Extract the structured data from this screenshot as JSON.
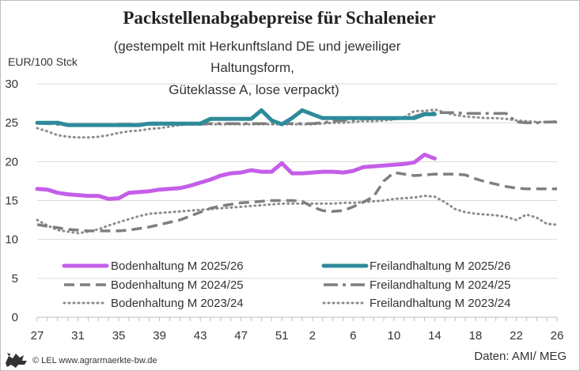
{
  "chart_data": {
    "type": "line",
    "title": "Packstellenabgabepreise für Schaleneier",
    "subtitle_lines": [
      "(gestempelt mit Herkunftsland DE und jeweiliger",
      "Haltungsform,",
      "Güteklasse A, lose verpackt)"
    ],
    "ylabel": "EUR/100 Stck",
    "ylim": [
      0,
      30
    ],
    "yticks": [
      "0",
      "5",
      "10",
      "15",
      "20",
      "25",
      "30"
    ],
    "xticks": [
      "27",
      "31",
      "35",
      "39",
      "43",
      "47",
      "51",
      "2",
      "6",
      "10",
      "14",
      "18",
      "22",
      "26"
    ],
    "x_weeks": [
      "27",
      "28",
      "29",
      "30",
      "31",
      "32",
      "33",
      "34",
      "35",
      "36",
      "37",
      "38",
      "39",
      "40",
      "41",
      "42",
      "43",
      "44",
      "45",
      "46",
      "47",
      "48",
      "49",
      "50",
      "51",
      "52",
      "1",
      "2",
      "3",
      "4",
      "5",
      "6",
      "7",
      "8",
      "9",
      "10",
      "11",
      "12",
      "13",
      "14",
      "15",
      "16",
      "17",
      "18",
      "19",
      "20",
      "21",
      "22",
      "23",
      "24",
      "25",
      "26"
    ],
    "grid": true,
    "legend_position": "bottom",
    "series": [
      {
        "name": "Bodenhaltung M 2025/26",
        "color": "#c45ee8",
        "style": "solid",
        "values": [
          16.5,
          16.4,
          16.0,
          15.8,
          15.7,
          15.6,
          15.6,
          15.2,
          15.3,
          16.0,
          16.1,
          16.2,
          16.4,
          16.5,
          16.6,
          16.9,
          17.3,
          17.7,
          18.2,
          18.5,
          18.6,
          18.9,
          18.7,
          18.7,
          19.8,
          18.5,
          18.5,
          18.6,
          18.7,
          18.7,
          18.6,
          18.8,
          19.3,
          19.4,
          19.5,
          19.6,
          19.7,
          19.9,
          20.9,
          20.4
        ]
      },
      {
        "name": "Freilandhaltung M 2025/26",
        "color": "#2e8b9a",
        "style": "solid",
        "values": [
          25.0,
          25.0,
          25.0,
          24.7,
          24.7,
          24.7,
          24.7,
          24.7,
          24.7,
          24.7,
          24.7,
          24.9,
          24.9,
          24.9,
          24.9,
          24.9,
          24.9,
          25.5,
          25.5,
          25.5,
          25.5,
          25.5,
          26.6,
          25.3,
          24.8,
          25.6,
          26.6,
          26.1,
          25.6,
          25.6,
          25.6,
          25.6,
          25.6,
          25.6,
          25.6,
          25.6,
          25.6,
          25.6,
          26.1,
          26.1
        ]
      },
      {
        "name": "Bodenhaltung M 2024/25",
        "color": "#7f7f7f",
        "style": "dashed",
        "values": [
          11.9,
          11.7,
          11.5,
          11.3,
          11.2,
          11.1,
          11.1,
          11.1,
          11.1,
          11.2,
          11.4,
          11.6,
          11.9,
          12.2,
          12.5,
          13.0,
          13.5,
          14.0,
          14.3,
          14.5,
          14.7,
          14.8,
          14.9,
          15.0,
          15.0,
          15.0,
          14.9,
          14.2,
          13.7,
          13.6,
          13.7,
          14.2,
          14.8,
          15.5,
          17.5,
          18.6,
          18.4,
          18.2,
          18.3,
          18.4,
          18.4,
          18.4,
          18.3,
          17.8,
          17.4,
          17.1,
          16.8,
          16.6,
          16.5,
          16.5,
          16.5,
          16.5
        ]
      },
      {
        "name": "Freilandhaltung M 2024/25",
        "color": "#7f7f7f",
        "style": "dashdot",
        "values": [
          25.0,
          24.9,
          24.8,
          24.7,
          24.7,
          24.7,
          24.7,
          24.7,
          24.8,
          24.8,
          24.8,
          24.8,
          24.8,
          24.8,
          24.8,
          24.8,
          24.8,
          24.9,
          24.9,
          24.9,
          24.9,
          24.9,
          24.9,
          24.9,
          24.9,
          24.9,
          24.9,
          24.9,
          25.0,
          25.2,
          25.3,
          25.4,
          25.5,
          25.5,
          25.5,
          25.5,
          25.6,
          25.8,
          26.2,
          26.3,
          26.3,
          26.3,
          26.2,
          26.2,
          26.2,
          26.2,
          26.2,
          25.1,
          25.0,
          25.0,
          25.1,
          25.1
        ]
      },
      {
        "name": "Bodenhaltung M 2023/24",
        "color": "#8c8c8c",
        "style": "dotted",
        "values": [
          12.5,
          11.8,
          11.2,
          11.0,
          10.8,
          11.0,
          11.3,
          11.8,
          12.2,
          12.6,
          13.0,
          13.3,
          13.4,
          13.5,
          13.6,
          13.7,
          13.8,
          13.9,
          14.0,
          14.1,
          14.2,
          14.3,
          14.4,
          14.5,
          14.6,
          14.6,
          14.6,
          14.6,
          14.6,
          14.6,
          14.7,
          14.7,
          14.8,
          14.9,
          15.0,
          15.2,
          15.3,
          15.4,
          15.6,
          15.5,
          14.8,
          13.9,
          13.5,
          13.3,
          13.2,
          13.1,
          12.9,
          12.5,
          13.2,
          12.8,
          12.0,
          11.9
        ]
      },
      {
        "name": "Freilandhaltung M 2023/24",
        "color": "#8c8c8c",
        "style": "dotted",
        "values": [
          24.3,
          23.9,
          23.4,
          23.2,
          23.1,
          23.1,
          23.2,
          23.4,
          23.7,
          23.9,
          24.0,
          24.2,
          24.3,
          24.5,
          24.7,
          24.8,
          24.8,
          24.8,
          24.8,
          24.8,
          24.8,
          24.8,
          24.8,
          24.8,
          24.8,
          24.8,
          24.8,
          24.8,
          24.9,
          25.0,
          25.0,
          25.1,
          25.2,
          25.2,
          25.3,
          25.4,
          25.7,
          26.5,
          26.5,
          26.7,
          26.3,
          26.0,
          25.8,
          25.7,
          25.6,
          25.6,
          25.5,
          25.3,
          25.2,
          25.1,
          25.1,
          25.2
        ]
      }
    ]
  },
  "footer": {
    "copyright": "© LEL www.agrarmaerkte-bw.de",
    "source": "Daten: AMI/ MEG"
  },
  "colors": {
    "grid": "#d9d9d9",
    "text": "#333333",
    "lion_logo": "#333333"
  },
  "icons": {
    "logo": "lion-logo-icon"
  }
}
